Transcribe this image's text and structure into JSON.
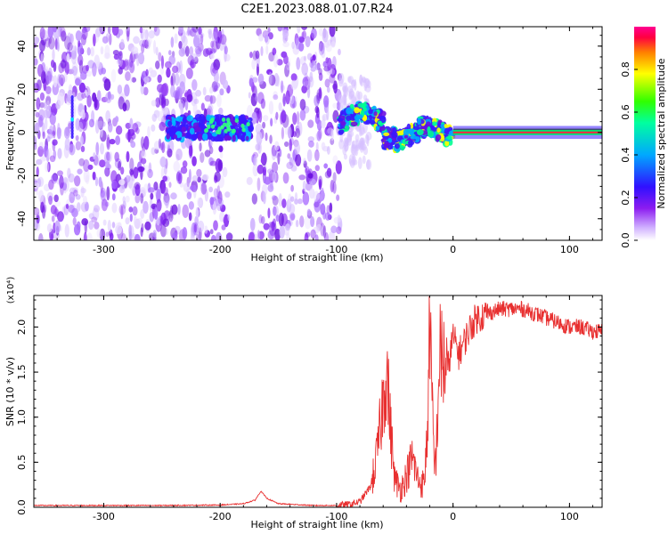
{
  "title": "C2E1.2023.088.01.07.R24",
  "chart_data": [
    {
      "type": "heatmap",
      "xlabel": "Height of straight line (km)",
      "ylabel": "Frequency (Hz)",
      "xlim": [
        -360,
        128
      ],
      "ylim": [
        -50,
        49
      ],
      "xticks": [
        -300,
        -200,
        -100,
        0,
        100
      ],
      "yticks": [
        -40,
        -20,
        0,
        20,
        40
      ],
      "colorbar": {
        "label": "Normalized spectral amplitude",
        "range": [
          0,
          1
        ],
        "ticks": [
          "0.0",
          "0.2",
          "0.4",
          "0.6",
          "0.8"
        ],
        "colormap": [
          "#ffffff",
          "#c8a0ff",
          "#7a1cf0",
          "#2020ff",
          "#00c8ff",
          "#00ff60",
          "#ffff00",
          "#ff8000",
          "#ff0040",
          "#ff0080"
        ]
      },
      "regions": [
        {
          "x": [
            -360,
            -97
          ],
          "note": "diffuse purple noise"
        },
        {
          "x": [
            -190,
            -175
          ],
          "note": "gap"
        },
        {
          "x": [
            -245,
            -175
          ],
          "note": "band near 0 Hz, amplitude ~0.2-0.5"
        },
        {
          "x": [
            -97,
            0
          ],
          "note": "wavy band, frequency -5 to 10 Hz, amplitude ~0.4-0.7"
        },
        {
          "x": [
            0,
            128
          ],
          "note": "strong line at 0 Hz, amplitude ~0.9"
        }
      ]
    },
    {
      "type": "line",
      "xlabel": "Height of straight line (km)",
      "ylabel": "SNR (10 * v/v)",
      "y_multiplier": "(x10⁴)",
      "xlim": [
        -360,
        128
      ],
      "ylim": [
        0,
        2.35
      ],
      "xticks": [
        -300,
        -200,
        -100,
        0,
        100
      ],
      "yticks": [
        "0.0",
        "0.5",
        "1.0",
        "1.5",
        "2.0"
      ],
      "color": "#e83030",
      "x": [
        -360,
        -300,
        -250,
        -200,
        -180,
        -170,
        -165,
        -160,
        -150,
        -120,
        -100,
        -90,
        -80,
        -70,
        -65,
        -60,
        -57,
        -55,
        -52,
        -50,
        -45,
        -40,
        -35,
        -30,
        -25,
        -22,
        -20,
        -18,
        -16,
        -14,
        -12,
        -10,
        -5,
        0,
        5,
        10,
        15,
        20,
        30,
        40,
        50,
        60,
        70,
        80,
        90,
        100,
        110,
        120,
        128
      ],
      "y": [
        0.02,
        0.02,
        0.02,
        0.025,
        0.04,
        0.08,
        0.18,
        0.1,
        0.04,
        0.02,
        0.02,
        0.03,
        0.06,
        0.25,
        0.6,
        1.2,
        1.6,
        1.1,
        0.6,
        0.3,
        0.2,
        0.35,
        0.55,
        0.3,
        0.25,
        0.8,
        2.3,
        1.1,
        0.4,
        0.7,
        1.6,
        1.7,
        1.5,
        1.9,
        1.7,
        1.85,
        2.0,
        2.1,
        2.15,
        2.2,
        2.2,
        2.2,
        2.15,
        2.1,
        2.05,
        2.0,
        2.0,
        1.95,
        1.95
      ]
    }
  ]
}
